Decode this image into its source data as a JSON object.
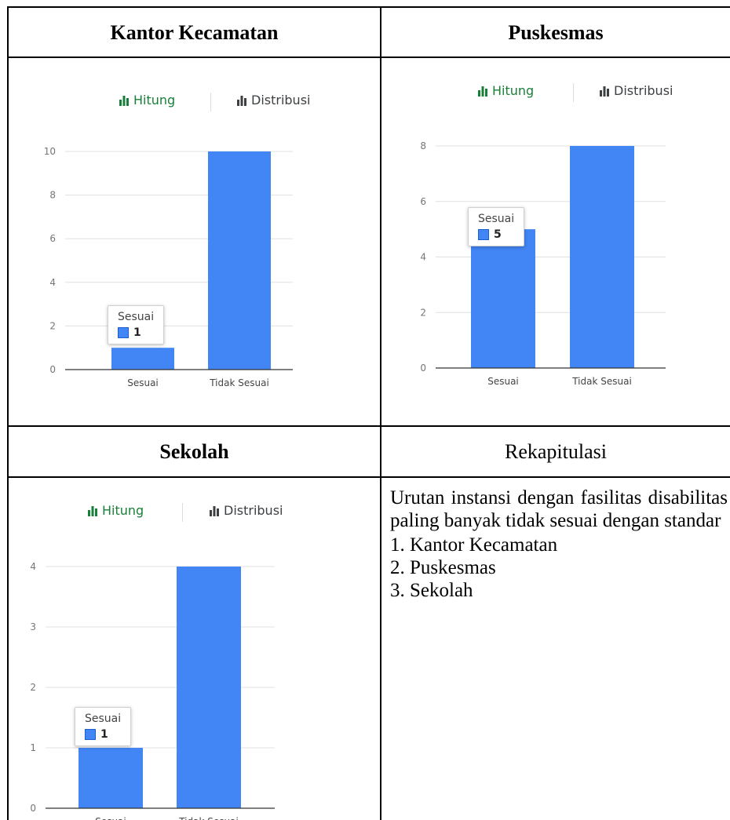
{
  "headers": {
    "kantor": "Kantor Kecamatan",
    "puskesmas": "Puskesmas",
    "sekolah": "Sekolah",
    "rekap": "Rekapitulasi"
  },
  "tabs": {
    "active": "Hitung",
    "inactive": "Distribusi",
    "active_icon": "bar-chart-icon",
    "inactive_icon": "bar-chart-icon"
  },
  "colors": {
    "bar": "#4285f4",
    "active_tab": "#188038"
  },
  "charts": [
    {
      "id": "kantor",
      "tooltip": {
        "title": "Sesuai",
        "value": "1"
      },
      "chart_data": {
        "type": "bar",
        "categories": [
          "Sesuai",
          "Tidak Sesuai"
        ],
        "values": [
          1,
          10
        ],
        "ylim": [
          0,
          10
        ],
        "yticks": [
          "0",
          "2",
          "4",
          "6",
          "8",
          "10"
        ]
      }
    },
    {
      "id": "puskesmas",
      "tooltip": {
        "title": "Sesuai",
        "value": "5"
      },
      "chart_data": {
        "type": "bar",
        "categories": [
          "Sesuai",
          "Tidak Sesuai"
        ],
        "values": [
          5,
          8
        ],
        "ylim": [
          0,
          8
        ],
        "yticks": [
          "0",
          "2",
          "4",
          "6",
          "8"
        ]
      }
    },
    {
      "id": "sekolah",
      "tooltip": {
        "title": "Sesuai",
        "value": "1"
      },
      "chart_data": {
        "type": "bar",
        "categories": [
          "Sesuai",
          "Tidak Sesuai"
        ],
        "values": [
          1,
          4
        ],
        "ylim": [
          0,
          4
        ],
        "yticks": [
          "0",
          "1",
          "2",
          "3",
          "4"
        ]
      }
    }
  ],
  "recap": {
    "intro": "Urutan instansi dengan fasilitas disabilitas paling banyak tidak sesuai dengan standar",
    "items": [
      "1. Kantor Kecamatan",
      "2. Puskesmas",
      "3. Sekolah"
    ]
  }
}
